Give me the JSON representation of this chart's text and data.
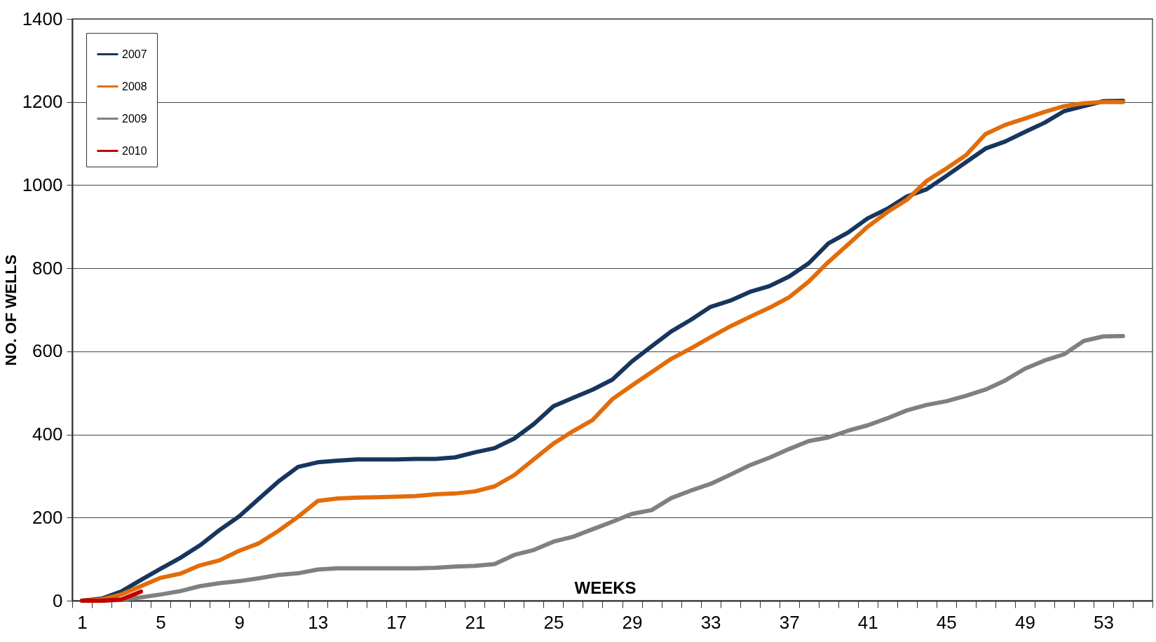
{
  "chart_data": {
    "type": "line",
    "xlabel": "WEEKS",
    "ylabel": "NO. OF WELLS",
    "categories": [
      "1",
      null,
      null,
      null,
      "5",
      null,
      null,
      null,
      "9",
      null,
      null,
      null,
      "13",
      null,
      null,
      null,
      "17",
      null,
      null,
      null,
      "21",
      null,
      null,
      null,
      "25",
      null,
      null,
      null,
      "29",
      null,
      null,
      null,
      "33",
      null,
      null,
      null,
      "37",
      null,
      null,
      null,
      "41",
      null,
      null,
      null,
      "45",
      null,
      null,
      null,
      "49",
      null,
      null,
      null,
      "53",
      null,
      null
    ],
    "series": [
      {
        "name": "2007",
        "color": "#17365d",
        "values": [
          0,
          5,
          22,
          50,
          77,
          103,
          133,
          170,
          203,
          245,
          287,
          322,
          333,
          337,
          340,
          340,
          340,
          341,
          341,
          345,
          357,
          367,
          390,
          425,
          468,
          488,
          508,
          532,
          576,
          612,
          648,
          676,
          707,
          722,
          743,
          757,
          780,
          812,
          860,
          886,
          920,
          943,
          973,
          990,
          1022,
          1055,
          1088,
          1105,
          1128,
          1150,
          1178,
          1190,
          1202,
          1203,
          null
        ]
      },
      {
        "name": "2008",
        "color": "#e36c0a",
        "values": [
          0,
          3,
          15,
          35,
          55,
          65,
          85,
          97,
          120,
          138,
          168,
          202,
          240,
          246,
          248,
          249,
          250,
          252,
          256,
          258,
          263,
          275,
          302,
          340,
          378,
          408,
          435,
          485,
          518,
          550,
          582,
          607,
          634,
          660,
          683,
          705,
          730,
          768,
          815,
          857,
          900,
          935,
          965,
          1010,
          1040,
          1072,
          1123,
          1145,
          1160,
          1176,
          1190,
          1197,
          1200,
          1200,
          null
        ]
      },
      {
        "name": "2009",
        "color": "#808080",
        "values": [
          0,
          0,
          2,
          8,
          15,
          23,
          35,
          42,
          47,
          54,
          62,
          66,
          75,
          78,
          78,
          78,
          78,
          78,
          79,
          82,
          84,
          88,
          110,
          122,
          142,
          154,
          172,
          190,
          209,
          218,
          247,
          265,
          281,
          303,
          326,
          344,
          365,
          384,
          393,
          409,
          422,
          439,
          458,
          471,
          480,
          493,
          508,
          530,
          558,
          578,
          593,
          625,
          636,
          637,
          null
        ]
      },
      {
        "name": "2010",
        "color": "#c00000",
        "values": [
          0,
          0,
          3,
          22,
          null,
          null,
          null,
          null,
          null,
          null,
          null,
          null,
          null,
          null,
          null,
          null,
          null,
          null,
          null,
          null,
          null,
          null,
          null,
          null,
          null,
          null,
          null,
          null,
          null,
          null,
          null,
          null,
          null,
          null,
          null,
          null,
          null,
          null,
          null,
          null,
          null,
          null,
          null,
          null,
          null,
          null,
          null,
          null,
          null,
          null,
          null,
          null,
          null,
          null,
          null
        ]
      }
    ],
    "ylim": [
      0,
      1400
    ],
    "yticks": [
      0,
      200,
      400,
      600,
      800,
      1000,
      1200,
      1400
    ],
    "grid": "y",
    "legend": "top left",
    "marker": "none",
    "line_style": "solid"
  }
}
